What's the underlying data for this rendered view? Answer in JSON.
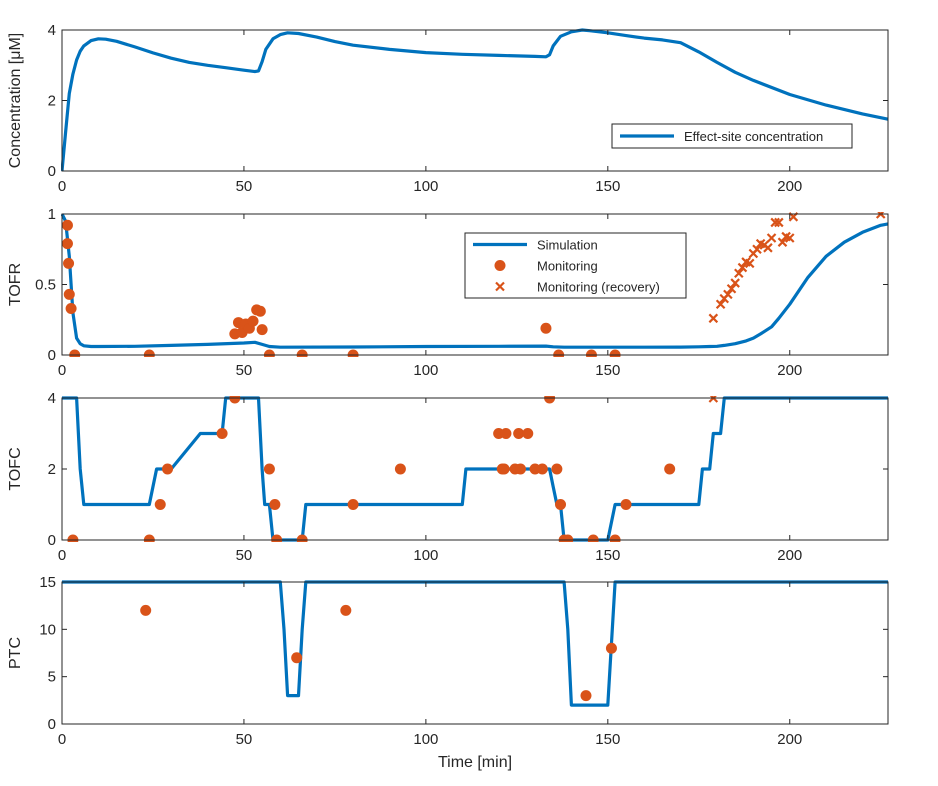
{
  "colors": {
    "line": "#0072BD",
    "marker": "#D95319",
    "axis": "#262626",
    "background": "#ffffff"
  },
  "chart_data": [
    {
      "type": "line",
      "ylabel": "Concentration [μM]",
      "xlabel": "",
      "xlim": [
        0,
        227
      ],
      "ylim": [
        0,
        4
      ],
      "xticks": [
        0,
        50,
        100,
        150,
        200
      ],
      "yticks": [
        0,
        2,
        4
      ],
      "legend": {
        "position": "bottom-right",
        "entries": [
          "Effect-site concentration"
        ]
      },
      "series": [
        {
          "name": "Effect-site concentration",
          "style": "line",
          "x": [
            0,
            1,
            2,
            3,
            4,
            5,
            6,
            8,
            10,
            12,
            15,
            20,
            25,
            30,
            35,
            40,
            45,
            50,
            53,
            54,
            55,
            56,
            58,
            60,
            62,
            65,
            70,
            75,
            80,
            90,
            100,
            110,
            120,
            130,
            133,
            134,
            135,
            137,
            140,
            143,
            145,
            150,
            155,
            160,
            165,
            170,
            175,
            180,
            185,
            190,
            200,
            210,
            220,
            227
          ],
          "y": [
            0,
            1.1,
            2.2,
            2.75,
            3.15,
            3.4,
            3.55,
            3.7,
            3.75,
            3.74,
            3.68,
            3.52,
            3.35,
            3.2,
            3.08,
            3.0,
            2.93,
            2.86,
            2.82,
            2.84,
            3.1,
            3.45,
            3.75,
            3.87,
            3.92,
            3.9,
            3.8,
            3.67,
            3.57,
            3.45,
            3.36,
            3.31,
            3.28,
            3.25,
            3.24,
            3.3,
            3.55,
            3.82,
            3.95,
            4.0,
            3.98,
            3.92,
            3.84,
            3.77,
            3.72,
            3.64,
            3.38,
            3.08,
            2.8,
            2.57,
            2.17,
            1.87,
            1.62,
            1.47
          ]
        }
      ]
    },
    {
      "type": "line",
      "ylabel": "TOFR",
      "xlabel": "",
      "xlim": [
        0,
        227
      ],
      "ylim": [
        0,
        1
      ],
      "xticks": [
        0,
        50,
        100,
        150,
        200
      ],
      "yticks": [
        0,
        0.5,
        1
      ],
      "legend": {
        "position": "top-center",
        "entries": [
          "Simulation",
          "Monitoring",
          "Monitoring (recovery)"
        ]
      },
      "series": [
        {
          "name": "Simulation",
          "style": "line",
          "x": [
            0,
            1,
            2,
            3,
            4,
            5,
            6,
            8,
            10,
            20,
            30,
            40,
            50,
            53,
            55,
            57,
            60,
            80,
            100,
            120,
            133,
            135,
            138,
            150,
            160,
            170,
            175,
            178,
            180,
            182,
            185,
            188,
            190,
            192,
            195,
            197,
            200,
            205,
            210,
            215,
            220,
            225,
            227
          ],
          "y": [
            1.0,
            0.95,
            0.7,
            0.3,
            0.12,
            0.08,
            0.065,
            0.06,
            0.06,
            0.062,
            0.068,
            0.075,
            0.085,
            0.09,
            0.075,
            0.06,
            0.055,
            0.057,
            0.06,
            0.062,
            0.063,
            0.058,
            0.055,
            0.055,
            0.055,
            0.056,
            0.058,
            0.06,
            0.062,
            0.068,
            0.08,
            0.1,
            0.12,
            0.15,
            0.2,
            0.26,
            0.36,
            0.55,
            0.7,
            0.8,
            0.87,
            0.92,
            0.93
          ]
        },
        {
          "name": "Monitoring",
          "style": "circle",
          "x": [
            1.5,
            1.5,
            1.8,
            2.0,
            2.5,
            3.5,
            24,
            47.5,
            48.5,
            49.5,
            50.5,
            51.5,
            52.5,
            53.5,
            54.5,
            55,
            57,
            66,
            80,
            133,
            136.5,
            145.5,
            152
          ],
          "y": [
            0.92,
            0.79,
            0.65,
            0.43,
            0.33,
            0.0,
            0.0,
            0.15,
            0.23,
            0.16,
            0.22,
            0.19,
            0.24,
            0.32,
            0.31,
            0.18,
            0.0,
            0.0,
            0.0,
            0.19,
            0.0,
            0.0,
            0.0
          ]
        },
        {
          "name": "Monitoring (recovery)",
          "style": "cross",
          "x": [
            179,
            181,
            182,
            183,
            184,
            185,
            186,
            187,
            188,
            189,
            190,
            191,
            192,
            193,
            194,
            195,
            196,
            197,
            198,
            199,
            200,
            201,
            225
          ],
          "y": [
            0.26,
            0.36,
            0.4,
            0.43,
            0.47,
            0.51,
            0.58,
            0.62,
            0.66,
            0.65,
            0.72,
            0.75,
            0.79,
            0.78,
            0.76,
            0.83,
            0.94,
            0.94,
            0.8,
            0.84,
            0.83,
            0.98,
            1.0
          ]
        }
      ]
    },
    {
      "type": "line",
      "ylabel": "TOFC",
      "xlabel": "",
      "xlim": [
        0,
        227
      ],
      "ylim": [
        0,
        4
      ],
      "xticks": [
        0,
        50,
        100,
        150,
        200
      ],
      "yticks": [
        0,
        2,
        4
      ],
      "series": [
        {
          "name": "Simulation",
          "style": "line",
          "x": [
            0,
            4,
            5,
            6,
            24,
            26,
            28,
            30,
            38,
            38.7,
            44,
            45,
            48,
            49,
            50,
            54,
            55,
            55.7,
            57,
            58,
            59,
            60,
            62,
            66,
            67,
            110,
            111,
            112,
            134,
            135,
            136,
            137,
            138,
            139,
            150,
            152,
            154,
            160,
            175,
            176,
            178,
            179,
            180,
            181,
            182,
            183,
            184,
            227
          ],
          "y": [
            4,
            4,
            2,
            1,
            1,
            2,
            2,
            2,
            3,
            3,
            3,
            4,
            4,
            4,
            4,
            4,
            2,
            1,
            1,
            0,
            0,
            0,
            0,
            0,
            1,
            1,
            2,
            2,
            2,
            1.5,
            1,
            1,
            0,
            0,
            0,
            1,
            1,
            1,
            1,
            2,
            2,
            3,
            3,
            3,
            4,
            4,
            4,
            4
          ]
        },
        {
          "name": "Monitoring",
          "style": "circle",
          "x": [
            3,
            24,
            27,
            29,
            44,
            47.5,
            57,
            58.5,
            59,
            66,
            80,
            93,
            120,
            121,
            121.5,
            122,
            124.5,
            125.5,
            126,
            128,
            130,
            132,
            134,
            136,
            137,
            138,
            139,
            146,
            152,
            155,
            167
          ],
          "y": [
            0,
            0,
            1,
            2,
            3,
            4,
            2,
            1,
            0,
            0,
            1,
            2,
            3,
            2,
            2,
            3,
            2,
            3,
            2,
            3,
            2,
            2,
            4,
            2,
            1,
            0,
            0,
            0,
            0,
            1,
            2
          ]
        },
        {
          "name": "Monitoring (recovery)",
          "style": "cross",
          "x": [
            179
          ],
          "y": [
            4
          ]
        }
      ]
    },
    {
      "type": "line",
      "ylabel": "PTC",
      "xlabel": "Time [min]",
      "xlim": [
        0,
        227
      ],
      "ylim": [
        0,
        15
      ],
      "xticks": [
        0,
        50,
        100,
        150,
        200
      ],
      "yticks": [
        0,
        5,
        10,
        15
      ],
      "series": [
        {
          "name": "Simulation",
          "style": "line",
          "x": [
            0,
            60,
            61,
            62,
            63,
            64,
            65,
            66,
            67,
            138,
            139,
            140,
            147,
            150,
            152,
            227
          ],
          "y": [
            15,
            15,
            10,
            3,
            3,
            3,
            3,
            10,
            15,
            15,
            10,
            2,
            2,
            2,
            15,
            15
          ]
        },
        {
          "name": "Monitoring",
          "style": "circle",
          "x": [
            23,
            64.5,
            78,
            144,
            151
          ],
          "y": [
            12,
            7,
            12,
            3,
            8
          ]
        }
      ]
    }
  ]
}
